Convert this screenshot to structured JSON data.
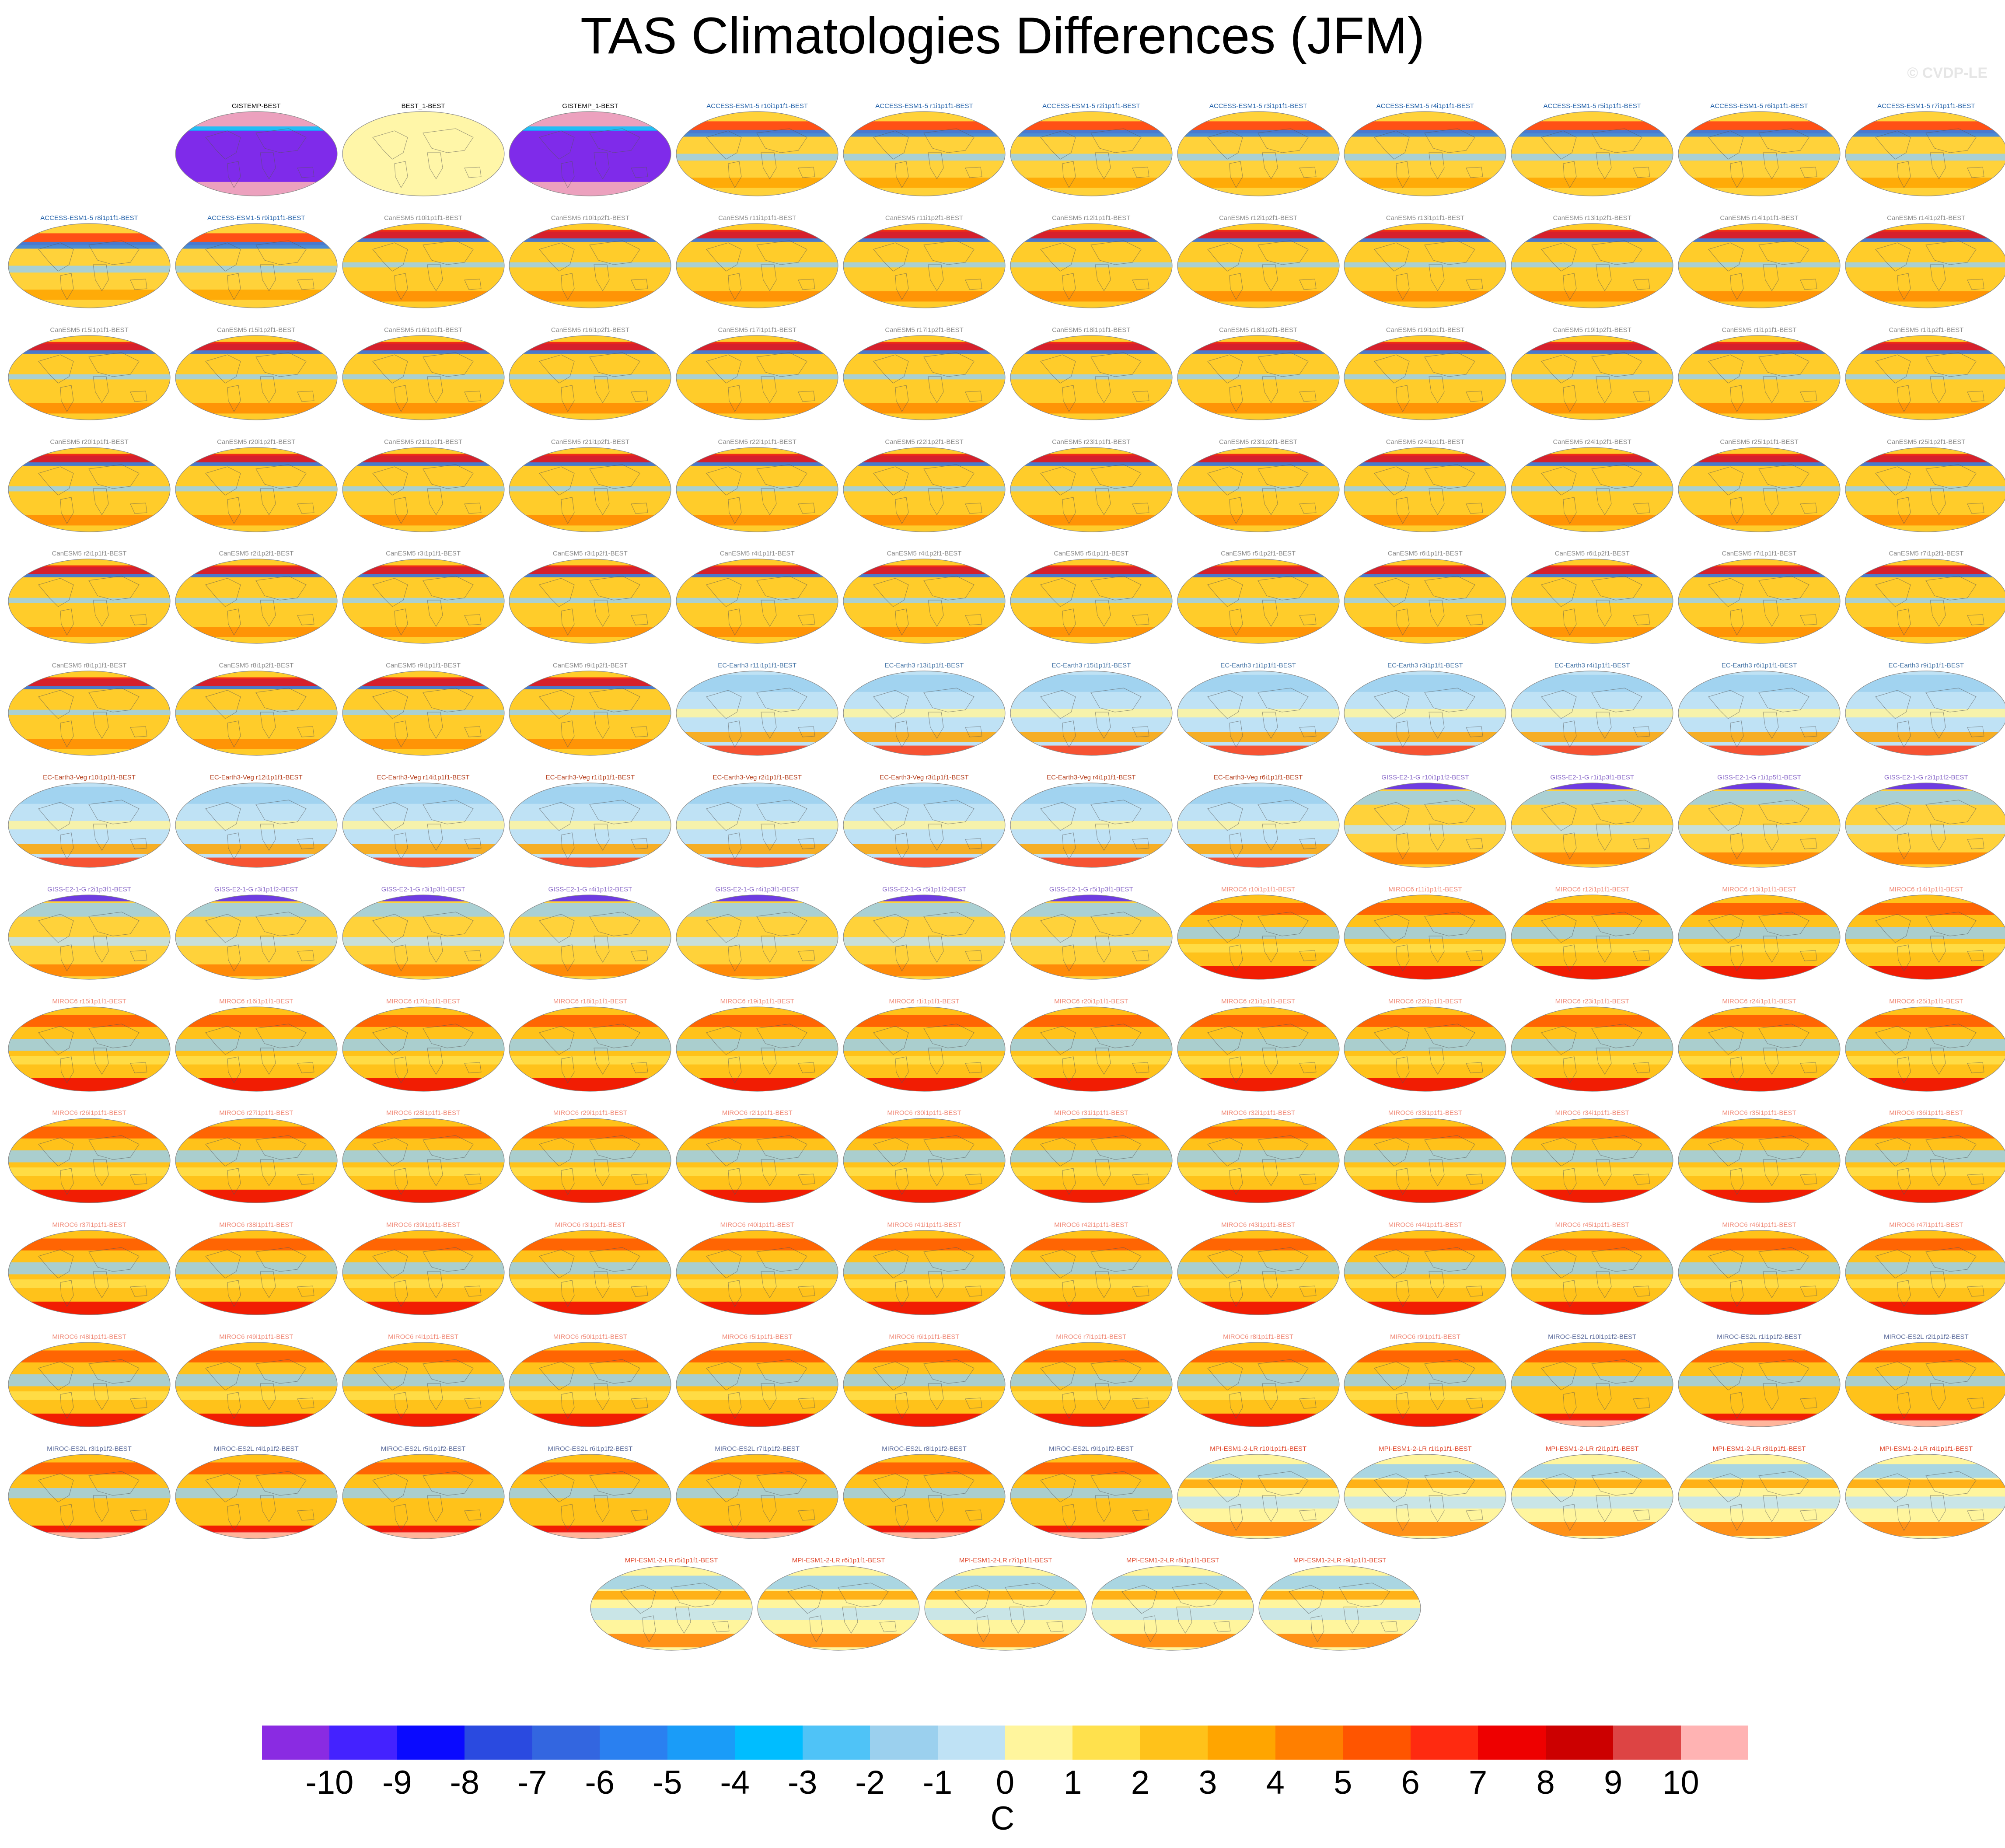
{
  "title": "TAS Climatologies Differences (JFM)",
  "credit": "© CVDP-LE",
  "colorbar": {
    "unit": "C",
    "ticks": [
      "-10",
      "-9",
      "-8",
      "-7",
      "-6",
      "-5",
      "-4",
      "-3",
      "-2",
      "-1",
      "0",
      "1",
      "2",
      "3",
      "4",
      "5",
      "6",
      "7",
      "8",
      "9",
      "10"
    ],
    "colors": [
      "#8a2be2",
      "#4422ff",
      "#0a0aff",
      "#2a4ae0",
      "#3366e0",
      "#2a80f0",
      "#1a9cf8",
      "#00bdff",
      "#4fc3f7",
      "#9bd0ee",
      "#bfe2f5",
      "#fff59d",
      "#ffe14d",
      "#ffc21a",
      "#ffa500",
      "#ff7f00",
      "#ff5500",
      "#ff2a10",
      "#ee0000",
      "#cc0000",
      "#dd4444",
      "#ffb3b3"
    ]
  },
  "panels": [
    {
      "label": "GISTEMP-BEST",
      "color": "#000000",
      "style": "purple"
    },
    {
      "label": "BEST_1-BEST",
      "color": "#000000",
      "style": "zero"
    },
    {
      "label": "GISTEMP_1-BEST",
      "color": "#000000",
      "style": "purple"
    },
    {
      "label": "ACCESS-ESM1-5 r10i1p1f1-BEST",
      "color": "#1f5fa8",
      "style": "access"
    },
    {
      "label": "ACCESS-ESM1-5 r1i1p1f1-BEST",
      "color": "#1f5fa8",
      "style": "access"
    },
    {
      "label": "ACCESS-ESM1-5 r2i1p1f1-BEST",
      "color": "#1f5fa8",
      "style": "access"
    },
    {
      "label": "ACCESS-ESM1-5 r3i1p1f1-BEST",
      "color": "#1f5fa8",
      "style": "access"
    },
    {
      "label": "ACCESS-ESM1-5 r4i1p1f1-BEST",
      "color": "#1f5fa8",
      "style": "access"
    },
    {
      "label": "ACCESS-ESM1-5 r5i1p1f1-BEST",
      "color": "#1f5fa8",
      "style": "access"
    },
    {
      "label": "ACCESS-ESM1-5 r6i1p1f1-BEST",
      "color": "#1f5fa8",
      "style": "access"
    },
    {
      "label": "ACCESS-ESM1-5 r7i1p1f1-BEST",
      "color": "#1f5fa8",
      "style": "access"
    },
    {
      "label": "ACCESS-ESM1-5 r8i1p1f1-BEST",
      "color": "#1f5fa8",
      "style": "access"
    },
    {
      "label": "ACCESS-ESM1-5 r9i1p1f1-BEST",
      "color": "#1f5fa8",
      "style": "access"
    },
    {
      "label": "CanESM5 r10i1p1f1-BEST",
      "color": "#8a8a8a",
      "style": "canesm"
    },
    {
      "label": "CanESM5 r10i1p2f1-BEST",
      "color": "#8a8a8a",
      "style": "canesm"
    },
    {
      "label": "CanESM5 r11i1p1f1-BEST",
      "color": "#8a8a8a",
      "style": "canesm"
    },
    {
      "label": "CanESM5 r11i1p2f1-BEST",
      "color": "#8a8a8a",
      "style": "canesm"
    },
    {
      "label": "CanESM5 r12i1p1f1-BEST",
      "color": "#8a8a8a",
      "style": "canesm"
    },
    {
      "label": "CanESM5 r12i1p2f1-BEST",
      "color": "#8a8a8a",
      "style": "canesm"
    },
    {
      "label": "CanESM5 r13i1p1f1-BEST",
      "color": "#8a8a8a",
      "style": "canesm"
    },
    {
      "label": "CanESM5 r13i1p2f1-BEST",
      "color": "#8a8a8a",
      "style": "canesm"
    },
    {
      "label": "CanESM5 r14i1p1f1-BEST",
      "color": "#8a8a8a",
      "style": "canesm"
    },
    {
      "label": "CanESM5 r14i1p2f1-BEST",
      "color": "#8a8a8a",
      "style": "canesm"
    },
    {
      "label": "CanESM5 r15i1p1f1-BEST",
      "color": "#8a8a8a",
      "style": "canesm"
    },
    {
      "label": "CanESM5 r15i1p2f1-BEST",
      "color": "#8a8a8a",
      "style": "canesm"
    },
    {
      "label": "CanESM5 r16i1p1f1-BEST",
      "color": "#8a8a8a",
      "style": "canesm"
    },
    {
      "label": "CanESM5 r16i1p2f1-BEST",
      "color": "#8a8a8a",
      "style": "canesm"
    },
    {
      "label": "CanESM5 r17i1p1f1-BEST",
      "color": "#8a8a8a",
      "style": "canesm"
    },
    {
      "label": "CanESM5 r17i1p2f1-BEST",
      "color": "#8a8a8a",
      "style": "canesm"
    },
    {
      "label": "CanESM5 r18i1p1f1-BEST",
      "color": "#8a8a8a",
      "style": "canesm"
    },
    {
      "label": "CanESM5 r18i1p2f1-BEST",
      "color": "#8a8a8a",
      "style": "canesm"
    },
    {
      "label": "CanESM5 r19i1p1f1-BEST",
      "color": "#8a8a8a",
      "style": "canesm"
    },
    {
      "label": "CanESM5 r19i1p2f1-BEST",
      "color": "#8a8a8a",
      "style": "canesm"
    },
    {
      "label": "CanESM5 r1i1p1f1-BEST",
      "color": "#8a8a8a",
      "style": "canesm"
    },
    {
      "label": "CanESM5 r1i1p2f1-BEST",
      "color": "#8a8a8a",
      "style": "canesm"
    },
    {
      "label": "CanESM5 r20i1p1f1-BEST",
      "color": "#8a8a8a",
      "style": "canesm"
    },
    {
      "label": "CanESM5 r20i1p2f1-BEST",
      "color": "#8a8a8a",
      "style": "canesm"
    },
    {
      "label": "CanESM5 r21i1p1f1-BEST",
      "color": "#8a8a8a",
      "style": "canesm"
    },
    {
      "label": "CanESM5 r21i1p2f1-BEST",
      "color": "#8a8a8a",
      "style": "canesm"
    },
    {
      "label": "CanESM5 r22i1p1f1-BEST",
      "color": "#8a8a8a",
      "style": "canesm"
    },
    {
      "label": "CanESM5 r22i1p2f1-BEST",
      "color": "#8a8a8a",
      "style": "canesm"
    },
    {
      "label": "CanESM5 r23i1p1f1-BEST",
      "color": "#8a8a8a",
      "style": "canesm"
    },
    {
      "label": "CanESM5 r23i1p2f1-BEST",
      "color": "#8a8a8a",
      "style": "canesm"
    },
    {
      "label": "CanESM5 r24i1p1f1-BEST",
      "color": "#8a8a8a",
      "style": "canesm"
    },
    {
      "label": "CanESM5 r24i1p2f1-BEST",
      "color": "#8a8a8a",
      "style": "canesm"
    },
    {
      "label": "CanESM5 r25i1p1f1-BEST",
      "color": "#8a8a8a",
      "style": "canesm"
    },
    {
      "label": "CanESM5 r25i1p2f1-BEST",
      "color": "#8a8a8a",
      "style": "canesm"
    },
    {
      "label": "CanESM5 r2i1p1f1-BEST",
      "color": "#8a8a8a",
      "style": "canesm"
    },
    {
      "label": "CanESM5 r2i1p2f1-BEST",
      "color": "#8a8a8a",
      "style": "canesm"
    },
    {
      "label": "CanESM5 r3i1p1f1-BEST",
      "color": "#8a8a8a",
      "style": "canesm"
    },
    {
      "label": "CanESM5 r3i1p2f1-BEST",
      "color": "#8a8a8a",
      "style": "canesm"
    },
    {
      "label": "CanESM5 r4i1p1f1-BEST",
      "color": "#8a8a8a",
      "style": "canesm"
    },
    {
      "label": "CanESM5 r4i1p2f1-BEST",
      "color": "#8a8a8a",
      "style": "canesm"
    },
    {
      "label": "CanESM5 r5i1p1f1-BEST",
      "color": "#8a8a8a",
      "style": "canesm"
    },
    {
      "label": "CanESM5 r5i1p2f1-BEST",
      "color": "#8a8a8a",
      "style": "canesm"
    },
    {
      "label": "CanESM5 r6i1p1f1-BEST",
      "color": "#8a8a8a",
      "style": "canesm"
    },
    {
      "label": "CanESM5 r6i1p2f1-BEST",
      "color": "#8a8a8a",
      "style": "canesm"
    },
    {
      "label": "CanESM5 r7i1p1f1-BEST",
      "color": "#8a8a8a",
      "style": "canesm"
    },
    {
      "label": "CanESM5 r7i1p2f1-BEST",
      "color": "#8a8a8a",
      "style": "canesm"
    },
    {
      "label": "CanESM5 r8i1p1f1-BEST",
      "color": "#8a8a8a",
      "style": "canesm"
    },
    {
      "label": "CanESM5 r8i1p2f1-BEST",
      "color": "#8a8a8a",
      "style": "canesm"
    },
    {
      "label": "CanESM5 r9i1p1f1-BEST",
      "color": "#8a8a8a",
      "style": "canesm"
    },
    {
      "label": "CanESM5 r9i1p2f1-BEST",
      "color": "#8a8a8a",
      "style": "canesm"
    },
    {
      "label": "EC-Earth3 r11i1p1f1-BEST",
      "color": "#4a78a8",
      "style": "ecearth"
    },
    {
      "label": "EC-Earth3 r13i1p1f1-BEST",
      "color": "#4a78a8",
      "style": "ecearth"
    },
    {
      "label": "EC-Earth3 r15i1p1f1-BEST",
      "color": "#4a78a8",
      "style": "ecearth"
    },
    {
      "label": "EC-Earth3 r1i1p1f1-BEST",
      "color": "#4a78a8",
      "style": "ecearth"
    },
    {
      "label": "EC-Earth3 r3i1p1f1-BEST",
      "color": "#4a78a8",
      "style": "ecearth"
    },
    {
      "label": "EC-Earth3 r4i1p1f1-BEST",
      "color": "#4a78a8",
      "style": "ecearth"
    },
    {
      "label": "EC-Earth3 r6i1p1f1-BEST",
      "color": "#4a78a8",
      "style": "ecearth"
    },
    {
      "label": "EC-Earth3 r9i1p1f1-BEST",
      "color": "#4a78a8",
      "style": "ecearth"
    },
    {
      "label": "EC-Earth3-Veg r10i1p1f1-BEST",
      "color": "#b5401f",
      "style": "ecearth"
    },
    {
      "label": "EC-Earth3-Veg r12i1p1f1-BEST",
      "color": "#b5401f",
      "style": "ecearth"
    },
    {
      "label": "EC-Earth3-Veg r14i1p1f1-BEST",
      "color": "#b5401f",
      "style": "ecearth"
    },
    {
      "label": "EC-Earth3-Veg r1i1p1f1-BEST",
      "color": "#b5401f",
      "style": "ecearth"
    },
    {
      "label": "EC-Earth3-Veg r2i1p1f1-BEST",
      "color": "#b5401f",
      "style": "ecearth"
    },
    {
      "label": "EC-Earth3-Veg r3i1p1f1-BEST",
      "color": "#b5401f",
      "style": "ecearth"
    },
    {
      "label": "EC-Earth3-Veg r4i1p1f1-BEST",
      "color": "#b5401f",
      "style": "ecearth"
    },
    {
      "label": "EC-Earth3-Veg r6i1p1f1-BEST",
      "color": "#b5401f",
      "style": "ecearth"
    },
    {
      "label": "GISS-E2-1-G r10i1p1f2-BEST",
      "color": "#8a6ac8",
      "style": "giss"
    },
    {
      "label": "GISS-E2-1-G r1i1p3f1-BEST",
      "color": "#8a6ac8",
      "style": "giss"
    },
    {
      "label": "GISS-E2-1-G r1i1p5f1-BEST",
      "color": "#8a6ac8",
      "style": "giss"
    },
    {
      "label": "GISS-E2-1-G r2i1p1f2-BEST",
      "color": "#8a6ac8",
      "style": "giss"
    },
    {
      "label": "GISS-E2-1-G r2i1p3f1-BEST",
      "color": "#8a6ac8",
      "style": "giss"
    },
    {
      "label": "GISS-E2-1-G r3i1p1f2-BEST",
      "color": "#8a6ac8",
      "style": "giss"
    },
    {
      "label": "GISS-E2-1-G r3i1p3f1-BEST",
      "color": "#8a6ac8",
      "style": "giss"
    },
    {
      "label": "GISS-E2-1-G r4i1p1f2-BEST",
      "color": "#8a6ac8",
      "style": "giss"
    },
    {
      "label": "GISS-E2-1-G r4i1p3f1-BEST",
      "color": "#8a6ac8",
      "style": "giss"
    },
    {
      "label": "GISS-E2-1-G r5i1p1f2-BEST",
      "color": "#8a6ac8",
      "style": "giss"
    },
    {
      "label": "GISS-E2-1-G r5i1p3f1-BEST",
      "color": "#8a6ac8",
      "style": "giss"
    },
    {
      "label": "MIROC6 r10i1p1f1-BEST",
      "color": "#f08a78",
      "style": "miroc"
    },
    {
      "label": "MIROC6 r11i1p1f1-BEST",
      "color": "#f08a78",
      "style": "miroc"
    },
    {
      "label": "MIROC6 r12i1p1f1-BEST",
      "color": "#f08a78",
      "style": "miroc"
    },
    {
      "label": "MIROC6 r13i1p1f1-BEST",
      "color": "#f08a78",
      "style": "miroc"
    },
    {
      "label": "MIROC6 r14i1p1f1-BEST",
      "color": "#f08a78",
      "style": "miroc"
    },
    {
      "label": "MIROC6 r15i1p1f1-BEST",
      "color": "#f08a78",
      "style": "miroc"
    },
    {
      "label": "MIROC6 r16i1p1f1-BEST",
      "color": "#f08a78",
      "style": "miroc"
    },
    {
      "label": "MIROC6 r17i1p1f1-BEST",
      "color": "#f08a78",
      "style": "miroc"
    },
    {
      "label": "MIROC6 r18i1p1f1-BEST",
      "color": "#f08a78",
      "style": "miroc"
    },
    {
      "label": "MIROC6 r19i1p1f1-BEST",
      "color": "#f08a78",
      "style": "miroc"
    },
    {
      "label": "MIROC6 r1i1p1f1-BEST",
      "color": "#f08a78",
      "style": "miroc"
    },
    {
      "label": "MIROC6 r20i1p1f1-BEST",
      "color": "#f08a78",
      "style": "miroc"
    },
    {
      "label": "MIROC6 r21i1p1f1-BEST",
      "color": "#f08a78",
      "style": "miroc"
    },
    {
      "label": "MIROC6 r22i1p1f1-BEST",
      "color": "#f08a78",
      "style": "miroc"
    },
    {
      "label": "MIROC6 r23i1p1f1-BEST",
      "color": "#f08a78",
      "style": "miroc"
    },
    {
      "label": "MIROC6 r24i1p1f1-BEST",
      "color": "#f08a78",
      "style": "miroc"
    },
    {
      "label": "MIROC6 r25i1p1f1-BEST",
      "color": "#f08a78",
      "style": "miroc"
    },
    {
      "label": "MIROC6 r26i1p1f1-BEST",
      "color": "#f08a78",
      "style": "miroc"
    },
    {
      "label": "MIROC6 r27i1p1f1-BEST",
      "color": "#f08a78",
      "style": "miroc"
    },
    {
      "label": "MIROC6 r28i1p1f1-BEST",
      "color": "#f08a78",
      "style": "miroc"
    },
    {
      "label": "MIROC6 r29i1p1f1-BEST",
      "color": "#f08a78",
      "style": "miroc"
    },
    {
      "label": "MIROC6 r2i1p1f1-BEST",
      "color": "#f08a78",
      "style": "miroc"
    },
    {
      "label": "MIROC6 r30i1p1f1-BEST",
      "color": "#f08a78",
      "style": "miroc"
    },
    {
      "label": "MIROC6 r31i1p1f1-BEST",
      "color": "#f08a78",
      "style": "miroc"
    },
    {
      "label": "MIROC6 r32i1p1f1-BEST",
      "color": "#f08a78",
      "style": "miroc"
    },
    {
      "label": "MIROC6 r33i1p1f1-BEST",
      "color": "#f08a78",
      "style": "miroc"
    },
    {
      "label": "MIROC6 r34i1p1f1-BEST",
      "color": "#f08a78",
      "style": "miroc"
    },
    {
      "label": "MIROC6 r35i1p1f1-BEST",
      "color": "#f08a78",
      "style": "miroc"
    },
    {
      "label": "MIROC6 r36i1p1f1-BEST",
      "color": "#f08a78",
      "style": "miroc"
    },
    {
      "label": "MIROC6 r37i1p1f1-BEST",
      "color": "#f08a78",
      "style": "miroc"
    },
    {
      "label": "MIROC6 r38i1p1f1-BEST",
      "color": "#f08a78",
      "style": "miroc"
    },
    {
      "label": "MIROC6 r39i1p1f1-BEST",
      "color": "#f08a78",
      "style": "miroc"
    },
    {
      "label": "MIROC6 r3i1p1f1-BEST",
      "color": "#f08a78",
      "style": "miroc"
    },
    {
      "label": "MIROC6 r40i1p1f1-BEST",
      "color": "#f08a78",
      "style": "miroc"
    },
    {
      "label": "MIROC6 r41i1p1f1-BEST",
      "color": "#f08a78",
      "style": "miroc"
    },
    {
      "label": "MIROC6 r42i1p1f1-BEST",
      "color": "#f08a78",
      "style": "miroc"
    },
    {
      "label": "MIROC6 r43i1p1f1-BEST",
      "color": "#f08a78",
      "style": "miroc"
    },
    {
      "label": "MIROC6 r44i1p1f1-BEST",
      "color": "#f08a78",
      "style": "miroc"
    },
    {
      "label": "MIROC6 r45i1p1f1-BEST",
      "color": "#f08a78",
      "style": "miroc"
    },
    {
      "label": "MIROC6 r46i1p1f1-BEST",
      "color": "#f08a78",
      "style": "miroc"
    },
    {
      "label": "MIROC6 r47i1p1f1-BEST",
      "color": "#f08a78",
      "style": "miroc"
    },
    {
      "label": "MIROC6 r48i1p1f1-BEST",
      "color": "#f08a78",
      "style": "miroc"
    },
    {
      "label": "MIROC6 r49i1p1f1-BEST",
      "color": "#f08a78",
      "style": "miroc"
    },
    {
      "label": "MIROC6 r4i1p1f1-BEST",
      "color": "#f08a78",
      "style": "miroc"
    },
    {
      "label": "MIROC6 r50i1p1f1-BEST",
      "color": "#f08a78",
      "style": "miroc"
    },
    {
      "label": "MIROC6 r5i1p1f1-BEST",
      "color": "#f08a78",
      "style": "miroc"
    },
    {
      "label": "MIROC6 r6i1p1f1-BEST",
      "color": "#f08a78",
      "style": "miroc"
    },
    {
      "label": "MIROC6 r7i1p1f1-BEST",
      "color": "#f08a78",
      "style": "miroc"
    },
    {
      "label": "MIROC6 r8i1p1f1-BEST",
      "color": "#f08a78",
      "style": "miroc"
    },
    {
      "label": "MIROC6 r9i1p1f1-BEST",
      "color": "#f08a78",
      "style": "miroc"
    },
    {
      "label": "MIROC-ES2L r10i1p1f2-BEST",
      "color": "#5a6a9a",
      "style": "miroces"
    },
    {
      "label": "MIROC-ES2L r1i1p1f2-BEST",
      "color": "#5a6a9a",
      "style": "miroces"
    },
    {
      "label": "MIROC-ES2L r2i1p1f2-BEST",
      "color": "#5a6a9a",
      "style": "miroces"
    },
    {
      "label": "MIROC-ES2L r3i1p1f2-BEST",
      "color": "#5a6a9a",
      "style": "miroces"
    },
    {
      "label": "MIROC-ES2L r4i1p1f2-BEST",
      "color": "#5a6a9a",
      "style": "miroces"
    },
    {
      "label": "MIROC-ES2L r5i1p1f2-BEST",
      "color": "#5a6a9a",
      "style": "miroces"
    },
    {
      "label": "MIROC-ES2L r6i1p1f2-BEST",
      "color": "#5a6a9a",
      "style": "miroces"
    },
    {
      "label": "MIROC-ES2L r7i1p1f2-BEST",
      "color": "#5a6a9a",
      "style": "miroces"
    },
    {
      "label": "MIROC-ES2L r8i1p1f2-BEST",
      "color": "#5a6a9a",
      "style": "miroces"
    },
    {
      "label": "MIROC-ES2L r9i1p1f2-BEST",
      "color": "#5a6a9a",
      "style": "miroces"
    },
    {
      "label": "MPI-ESM1-2-LR r10i1p1f1-BEST",
      "color": "#e0452a",
      "style": "mpi"
    },
    {
      "label": "MPI-ESM1-2-LR r1i1p1f1-BEST",
      "color": "#e0452a",
      "style": "mpi"
    },
    {
      "label": "MPI-ESM1-2-LR r2i1p1f1-BEST",
      "color": "#e0452a",
      "style": "mpi"
    },
    {
      "label": "MPI-ESM1-2-LR r3i1p1f1-BEST",
      "color": "#e0452a",
      "style": "mpi"
    },
    {
      "label": "MPI-ESM1-2-LR r4i1p1f1-BEST",
      "color": "#e0452a",
      "style": "mpi"
    },
    {
      "label": "MPI-ESM1-2-LR r5i1p1f1-BEST",
      "color": "#e0452a",
      "style": "mpi"
    },
    {
      "label": "MPI-ESM1-2-LR r6i1p1f1-BEST",
      "color": "#e0452a",
      "style": "mpi"
    },
    {
      "label": "MPI-ESM1-2-LR r7i1p1f1-BEST",
      "color": "#e0452a",
      "style": "mpi"
    },
    {
      "label": "MPI-ESM1-2-LR r8i1p1f1-BEST",
      "color": "#e0452a",
      "style": "mpi"
    },
    {
      "label": "MPI-ESM1-2-LR r9i1p1f1-BEST",
      "color": "#e0452a",
      "style": "mpi"
    }
  ]
}
